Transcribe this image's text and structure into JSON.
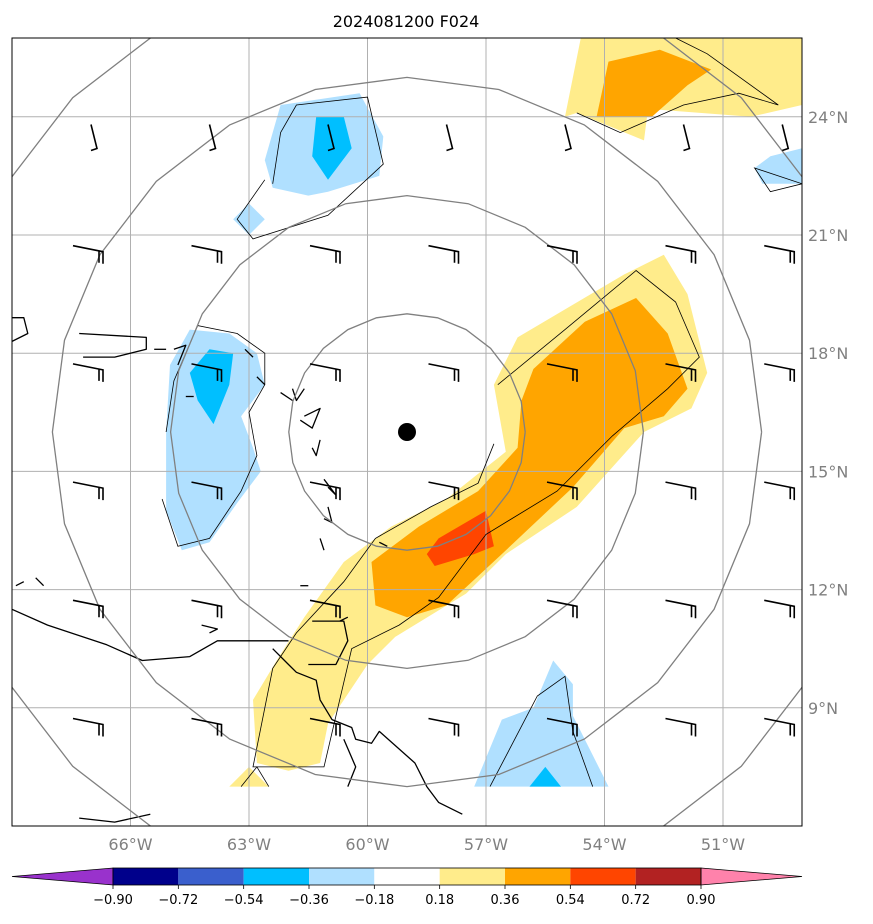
{
  "title": "2024081200 F024",
  "map": {
    "lon_range": [
      -69,
      -49
    ],
    "lat_range": [
      6,
      26
    ],
    "lon_ticks": [
      {
        "value": -66,
        "label": "66°W"
      },
      {
        "value": -63,
        "label": "63°W"
      },
      {
        "value": -60,
        "label": "60°W"
      },
      {
        "value": -57,
        "label": "57°W"
      },
      {
        "value": -54,
        "label": "54°W"
      },
      {
        "value": -51,
        "label": "51°W"
      }
    ],
    "lat_ticks": [
      {
        "value": 9,
        "label": "9°N"
      },
      {
        "value": 12,
        "label": "12°N"
      },
      {
        "value": 15,
        "label": "15°N"
      },
      {
        "value": 18,
        "label": "18°N"
      },
      {
        "value": 21,
        "label": "21°N"
      },
      {
        "value": 24,
        "label": "24°N"
      }
    ],
    "grid": true,
    "center": {
      "lon": -59,
      "lat": 16
    },
    "range_rings_deg": [
      3,
      6,
      9,
      12
    ],
    "colors": {
      "ring": "#808080",
      "grid": "#b0b0b0",
      "coast": "#000000",
      "center_marker": "#000000"
    }
  },
  "colorbar": {
    "levels": [
      "−0.90",
      "−0.72",
      "−0.54",
      "−0.36",
      "−0.18",
      "0.18",
      "0.36",
      "0.54",
      "0.72",
      "0.90"
    ],
    "colors": [
      "#9932cc",
      "#00008b",
      "#3a5fcd",
      "#00bfff",
      "#b0e0ff",
      "#ffffff",
      "#ffec8b",
      "#ffa500",
      "#ff4500",
      "#b22222",
      "#ff82ab"
    ],
    "extend": "both"
  },
  "fields": {
    "shaded_regions": [
      {
        "name": "light-blue-north",
        "level": "-0.36 to -0.18",
        "color": "#b0e0ff",
        "poly": [
          [
            -62.2,
            24.3
          ],
          [
            -60.2,
            24.6
          ],
          [
            -59.6,
            23.5
          ],
          [
            -59.7,
            22.5
          ],
          [
            -61,
            22.1
          ],
          [
            -61.5,
            22
          ],
          [
            -62.4,
            22.2
          ],
          [
            -62.6,
            22.9
          ]
        ]
      },
      {
        "name": "light-blue-north-tail",
        "level": "-0.36 to -0.18",
        "color": "#b0e0ff",
        "poly": [
          [
            -63.4,
            21.4
          ],
          [
            -63,
            21.8
          ],
          [
            -62.6,
            21.4
          ],
          [
            -63,
            21
          ]
        ]
      },
      {
        "name": "blue-north",
        "level": "-0.54 to -0.36",
        "color": "#00bfff",
        "poly": [
          [
            -61.3,
            24
          ],
          [
            -60.6,
            24
          ],
          [
            -60.4,
            23.2
          ],
          [
            -61,
            22.4
          ],
          [
            -61.4,
            23
          ]
        ]
      },
      {
        "name": "light-blue-west",
        "level": "-0.36 to -0.18",
        "color": "#b0e0ff",
        "poly": [
          [
            -65,
            17.7
          ],
          [
            -64.5,
            18.6
          ],
          [
            -63.5,
            18.5
          ],
          [
            -62.8,
            18
          ],
          [
            -62.6,
            17.2
          ],
          [
            -63.2,
            16.4
          ],
          [
            -62.9,
            15.6
          ],
          [
            -62.7,
            15
          ],
          [
            -63.3,
            14.2
          ],
          [
            -64,
            13.2
          ],
          [
            -64.7,
            13
          ],
          [
            -65.1,
            14
          ],
          [
            -65.1,
            16
          ]
        ]
      },
      {
        "name": "blue-west",
        "level": "-0.54 to -0.36",
        "color": "#00bfff",
        "poly": [
          [
            -64.5,
            17.5
          ],
          [
            -64,
            18.1
          ],
          [
            -63.4,
            18
          ],
          [
            -63.5,
            17.2
          ],
          [
            -63.9,
            16.2
          ],
          [
            -64.3,
            16.8
          ]
        ]
      },
      {
        "name": "yellow-main",
        "level": "0.18 to 0.36",
        "color": "#ffec8b",
        "poly": [
          [
            -56.2,
            18.4
          ],
          [
            -53.5,
            20
          ],
          [
            -52.5,
            20.5
          ],
          [
            -51.9,
            19.5
          ],
          [
            -51.4,
            17.5
          ],
          [
            -51.8,
            16.6
          ],
          [
            -53,
            16
          ],
          [
            -54.7,
            14.1
          ],
          [
            -56.5,
            12.9
          ],
          [
            -57.5,
            11.9
          ],
          [
            -59.3,
            10.8
          ],
          [
            -60,
            10.1
          ],
          [
            -61,
            8.6
          ],
          [
            -61.2,
            7.6
          ],
          [
            -62,
            7.4
          ],
          [
            -62.8,
            7.6
          ],
          [
            -62.9,
            9.2
          ],
          [
            -62.3,
            10.2
          ],
          [
            -61.6,
            11.3
          ],
          [
            -60.6,
            12.7
          ],
          [
            -59.4,
            13.6
          ],
          [
            -58,
            14.3
          ],
          [
            -56.5,
            15.5
          ],
          [
            -56.8,
            17.2
          ]
        ]
      },
      {
        "name": "orange-main",
        "level": "0.36 to 0.54",
        "color": "#ffa500",
        "poly": [
          [
            -55.8,
            17.6
          ],
          [
            -54.5,
            18.8
          ],
          [
            -53.2,
            19.4
          ],
          [
            -52.4,
            18.5
          ],
          [
            -51.9,
            17.1
          ],
          [
            -52.5,
            16.4
          ],
          [
            -53.5,
            16.1
          ],
          [
            -54.8,
            14.6
          ],
          [
            -56.6,
            12.9
          ],
          [
            -58,
            11.6
          ],
          [
            -59,
            11.3
          ],
          [
            -59.8,
            11.6
          ],
          [
            -59.9,
            12.7
          ],
          [
            -58.7,
            13.6
          ],
          [
            -57.2,
            14.5
          ],
          [
            -56.2,
            15.6
          ],
          [
            -56.1,
            16.8
          ]
        ]
      },
      {
        "name": "red-spot",
        "level": "0.54 to 0.72",
        "color": "#ff4500",
        "poly": [
          [
            -58.2,
            13.3
          ],
          [
            -57,
            14
          ],
          [
            -56.8,
            13.1
          ],
          [
            -57.3,
            12.9
          ],
          [
            -58.3,
            12.6
          ],
          [
            -58.5,
            12.9
          ]
        ]
      },
      {
        "name": "yellow-ne",
        "level": "0.18 to 0.36",
        "color": "#ffec8b",
        "poly": [
          [
            -54.6,
            26
          ],
          [
            -49,
            26
          ],
          [
            -49,
            24.3
          ],
          [
            -50.3,
            24
          ],
          [
            -52.9,
            24.2
          ],
          [
            -53,
            23.4
          ],
          [
            -54.7,
            24.1
          ],
          [
            -55,
            24
          ]
        ]
      },
      {
        "name": "orange-ne",
        "level": "0.36 to 0.54",
        "color": "#ffa500",
        "poly": [
          [
            -53.9,
            25.4
          ],
          [
            -52.6,
            25.7
          ],
          [
            -51.3,
            25.2
          ],
          [
            -51.9,
            24.8
          ],
          [
            -52.8,
            24
          ],
          [
            -54.2,
            24
          ]
        ]
      },
      {
        "name": "light-blue-east-edge",
        "level": "-0.36 to -0.18",
        "color": "#b0e0ff",
        "poly": [
          [
            -49,
            23.2
          ],
          [
            -49,
            22.3
          ],
          [
            -50,
            22.3
          ],
          [
            -50.2,
            22.7
          ],
          [
            -49.8,
            23
          ]
        ]
      },
      {
        "name": "light-blue-south",
        "level": "-0.36 to -0.18",
        "color": "#b0e0ff",
        "poly": [
          [
            -56.6,
            8.7
          ],
          [
            -55.8,
            9
          ],
          [
            -55.3,
            10.2
          ],
          [
            -54.8,
            9.6
          ],
          [
            -54.8,
            8.8
          ],
          [
            -53.9,
            7
          ],
          [
            -57.3,
            7
          ]
        ]
      },
      {
        "name": "blue-south",
        "level": "-0.54 to -0.36",
        "color": "#00bfff",
        "poly": [
          [
            -55.5,
            7.5
          ],
          [
            -55.9,
            7
          ],
          [
            -55.1,
            7
          ]
        ]
      },
      {
        "name": "yellow-bottom-tip",
        "level": "0.18 to 0.36",
        "color": "#ffec8b",
        "poly": [
          [
            -63,
            7.5
          ],
          [
            -63.5,
            7
          ],
          [
            -62.5,
            7
          ]
        ]
      }
    ],
    "contours": [
      [
        [
          -62.4,
          22.3
        ],
        [
          -62.2,
          23.6
        ],
        [
          -61.8,
          24.3
        ],
        [
          -60,
          24.5
        ],
        [
          -59.6,
          22.8
        ],
        [
          -61,
          21.5
        ],
        [
          -62.9,
          20.9
        ],
        [
          -63.3,
          21.4
        ],
        [
          -62.6,
          22.4
        ]
      ],
      [
        [
          -65.1,
          16
        ],
        [
          -64.9,
          17.3
        ],
        [
          -64.3,
          18.7
        ],
        [
          -63.3,
          18.5
        ],
        [
          -62.6,
          18
        ],
        [
          -62.6,
          17.2
        ],
        [
          -63,
          16.5
        ],
        [
          -62.8,
          15.4
        ],
        [
          -63.2,
          14.5
        ],
        [
          -64,
          13.3
        ],
        [
          -64.8,
          13.1
        ],
        [
          -65.2,
          14.3
        ]
      ],
      [
        [
          -56.7,
          17.2
        ],
        [
          -55,
          18.6
        ],
        [
          -53.2,
          20.1
        ],
        [
          -52.2,
          19.3
        ],
        [
          -51.6,
          17.9
        ],
        [
          -52.4,
          17.1
        ],
        [
          -53.8,
          15.9
        ],
        [
          -55.2,
          14.5
        ],
        [
          -57,
          13.4
        ],
        [
          -58.2,
          11.8
        ],
        [
          -59.2,
          11.1
        ],
        [
          -60.4,
          10.5
        ],
        [
          -61.1,
          7.5
        ],
        [
          -62.9,
          7.5
        ],
        [
          -62.4,
          10
        ],
        [
          -61.8,
          10.9
        ],
        [
          -60.6,
          12.2
        ],
        [
          -59.8,
          13.3
        ],
        [
          -58.4,
          14.1
        ],
        [
          -57.2,
          14.7
        ],
        [
          -56.8,
          15.7
        ]
      ],
      [
        [
          -54.7,
          24.1
        ],
        [
          -53.6,
          23.6
        ],
        [
          -52,
          24.3
        ],
        [
          -50.6,
          24.6
        ],
        [
          -49.6,
          24.3
        ],
        [
          -51.4,
          25.6
        ],
        [
          -52.2,
          26
        ],
        [
          -53.6,
          26
        ]
      ],
      [
        [
          -49,
          22.3
        ],
        [
          -50.2,
          22.7
        ],
        [
          -49.8,
          22.1
        ],
        [
          -49,
          22.3
        ]
      ],
      [
        [
          -56.9,
          7
        ],
        [
          -55.7,
          9.3
        ],
        [
          -55,
          9.8
        ],
        [
          -54.8,
          8.4
        ],
        [
          -54.3,
          7
        ]
      ],
      [
        [
          -63.2,
          7
        ],
        [
          -62.8,
          7.5
        ],
        [
          -62.5,
          7
        ]
      ]
    ],
    "coastlines": [
      [
        [
          -67.3,
          18.5
        ],
        [
          -65.6,
          18.4
        ],
        [
          -65.6,
          18.1
        ],
        [
          -66.4,
          17.9
        ],
        [
          -67.2,
          17.9
        ]
      ],
      [
        [
          -69,
          18.9
        ],
        [
          -68.7,
          18.9
        ],
        [
          -68.6,
          18.5
        ],
        [
          -69,
          18.3
        ]
      ],
      [
        [
          -65.4,
          18.1
        ],
        [
          -65.1,
          18.1
        ]
      ],
      [
        [
          -64.9,
          18.1
        ],
        [
          -64.6,
          18.2
        ],
        [
          -64.8,
          17.7
        ]
      ],
      [
        [
          -64.6,
          16.9
        ],
        [
          -64.4,
          16.9
        ]
      ],
      [
        [
          -63.1,
          18.1
        ],
        [
          -62.9,
          17.9
        ]
      ],
      [
        [
          -62.8,
          17.4
        ],
        [
          -62.6,
          17.2
        ]
      ],
      [
        [
          -62.2,
          17
        ],
        [
          -61.9,
          16.8
        ]
      ],
      [
        [
          -61.9,
          17.1
        ],
        [
          -61.8,
          16.8
        ],
        [
          -61.6,
          17.1
        ]
      ],
      [
        [
          -61.6,
          16.4
        ],
        [
          -61.2,
          16.6
        ],
        [
          -61.4,
          16.1
        ],
        [
          -61.7,
          16.3
        ]
      ],
      [
        [
          -61.2,
          15.8
        ],
        [
          -61.3,
          15.4
        ],
        [
          -61.4,
          15.6
        ]
      ],
      [
        [
          -61.1,
          14.8
        ],
        [
          -60.8,
          14.4
        ],
        [
          -61,
          14.6
        ]
      ],
      [
        [
          -61,
          14.1
        ],
        [
          -60.9,
          13.7
        ],
        [
          -61.1,
          13.8
        ]
      ],
      [
        [
          -61.2,
          13.3
        ],
        [
          -61.1,
          13
        ]
      ],
      [
        [
          -59.7,
          13.2
        ],
        [
          -59.5,
          13.1
        ]
      ],
      [
        [
          -61.5,
          12.1
        ],
        [
          -61.7,
          12.1
        ]
      ],
      [
        [
          -68.9,
          12.1
        ],
        [
          -68.7,
          12.2
        ]
      ],
      [
        [
          -68.4,
          12.3
        ],
        [
          -68.2,
          12.1
        ]
      ],
      [
        [
          -61.4,
          11.2
        ],
        [
          -60.6,
          11.2
        ],
        [
          -60.5,
          10.7
        ],
        [
          -60.8,
          10.1
        ],
        [
          -61.5,
          10.1
        ]
      ],
      [
        [
          -60.7,
          11.2
        ],
        [
          -60.5,
          11.3
        ]
      ],
      [
        [
          -69,
          11.5
        ],
        [
          -68.1,
          11.1
        ],
        [
          -66.6,
          10.6
        ],
        [
          -65.7,
          10.2
        ],
        [
          -64.5,
          10.3
        ],
        [
          -63.8,
          10.7
        ],
        [
          -62.7,
          10.7
        ],
        [
          -62.2,
          10.7
        ],
        [
          -62,
          10.7
        ]
      ],
      [
        [
          -64.2,
          11.1
        ],
        [
          -63.8,
          11
        ],
        [
          -64,
          10.9
        ]
      ],
      [
        [
          -62.4,
          10.5
        ],
        [
          -62,
          10.1
        ],
        [
          -61.8,
          9.9
        ],
        [
          -61.3,
          9.7
        ],
        [
          -61.2,
          9.2
        ],
        [
          -60.9,
          8.7
        ],
        [
          -60.4,
          8.5
        ],
        [
          -60.3,
          8.2
        ],
        [
          -59.9,
          8.1
        ],
        [
          -59.7,
          8.4
        ],
        [
          -58.8,
          7.6
        ],
        [
          -58.5,
          7
        ],
        [
          -58.2,
          6.6
        ],
        [
          -57.6,
          6.3
        ]
      ],
      [
        [
          -60.6,
          8.2
        ],
        [
          -60.3,
          7.5
        ],
        [
          -60.5,
          7
        ]
      ],
      [
        [
          -67.3,
          6.2
        ],
        [
          -66.4,
          6.1
        ],
        [
          -65.5,
          6.3
        ]
      ]
    ],
    "wind_barbs": {
      "lons": [
        -67,
        -64,
        -61,
        -58,
        -55,
        -52,
        -49.5
      ],
      "lats": [
        23.5,
        20.5,
        17.5,
        14.5,
        11.5,
        8.5
      ],
      "note": "barbs sampled every 3 degrees"
    }
  }
}
